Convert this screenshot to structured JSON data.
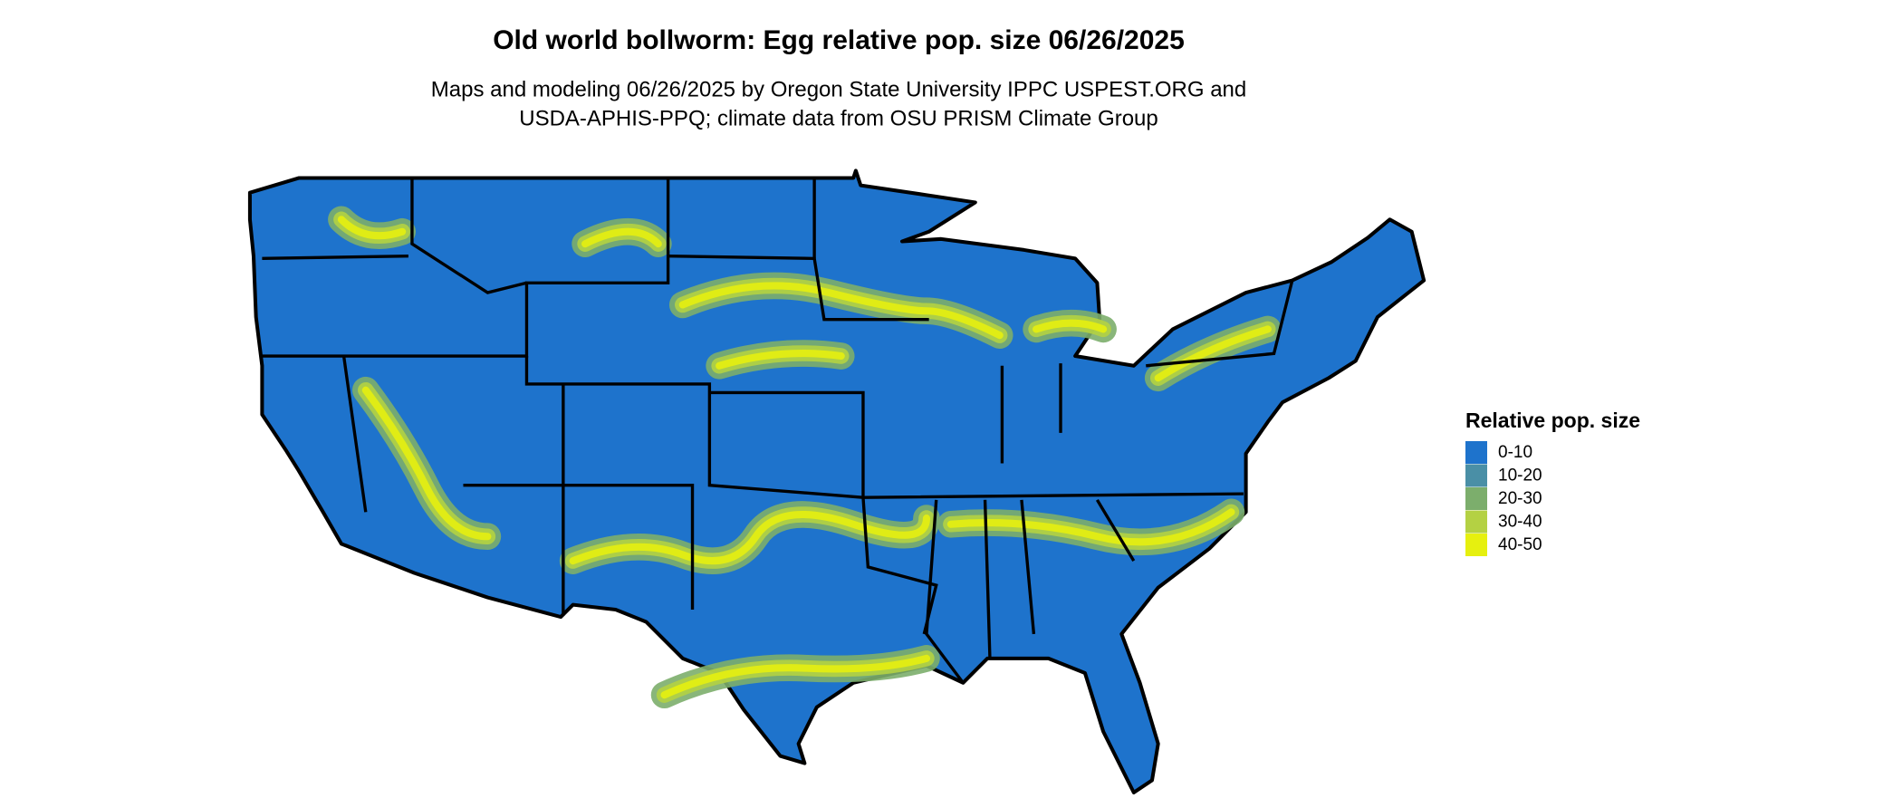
{
  "header": {
    "title": "Old world bollworm: Egg relative pop. size 06/26/2025",
    "subtitle_lines": [
      "Maps and modeling 06/26/2025 by Oregon State University IPPC USPEST.ORG and",
      "USDA-APHIS-PPQ; climate data from OSU PRISM Climate Group"
    ]
  },
  "legend": {
    "title": "Relative pop. size",
    "items": [
      {
        "label": "0-10",
        "color": "#1e73cc"
      },
      {
        "label": "10-20",
        "color": "#4a8fa6"
      },
      {
        "label": "20-30",
        "color": "#7cae6c"
      },
      {
        "label": "30-40",
        "color": "#b4d143"
      },
      {
        "label": "40-50",
        "color": "#e6f00f"
      }
    ]
  }
}
